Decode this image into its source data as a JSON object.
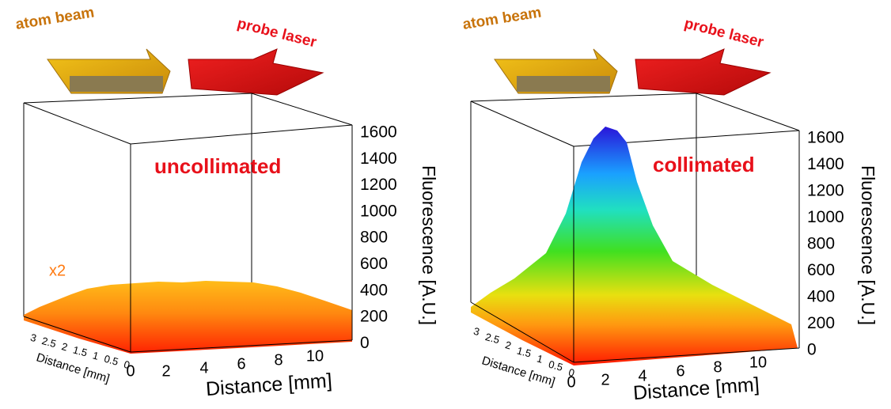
{
  "panels": [
    {
      "beam_label": "atom beam",
      "laser_label": "probe laser",
      "state": "uncollimated",
      "scale_note": "x2",
      "z_axis": {
        "title": "Fluorescence [A.U.]",
        "ticks": [
          1600,
          1400,
          1200,
          1000,
          800,
          600,
          400,
          200,
          0
        ]
      },
      "x_axis": {
        "title": "Distance [mm]",
        "ticks": [
          0,
          2,
          4,
          6,
          8,
          10
        ]
      },
      "depth_axis": {
        "title": "Distance [mm]",
        "ticks": [
          3,
          2.5,
          2,
          1.5,
          1,
          0.5,
          0
        ]
      }
    },
    {
      "beam_label": "atom beam",
      "laser_label": "probe laser",
      "state": "collimated",
      "z_axis": {
        "title": "Fluorescence [A.U.]",
        "ticks": [
          1600,
          1400,
          1200,
          1000,
          800,
          600,
          400,
          200,
          0
        ]
      },
      "x_axis": {
        "title": "Distance [mm]",
        "ticks": [
          0,
          2,
          4,
          6,
          8,
          10
        ]
      },
      "depth_axis": {
        "title": "Distance [mm]",
        "ticks": [
          3,
          2.5,
          2,
          1.5,
          1,
          0.5,
          0
        ]
      }
    }
  ]
}
